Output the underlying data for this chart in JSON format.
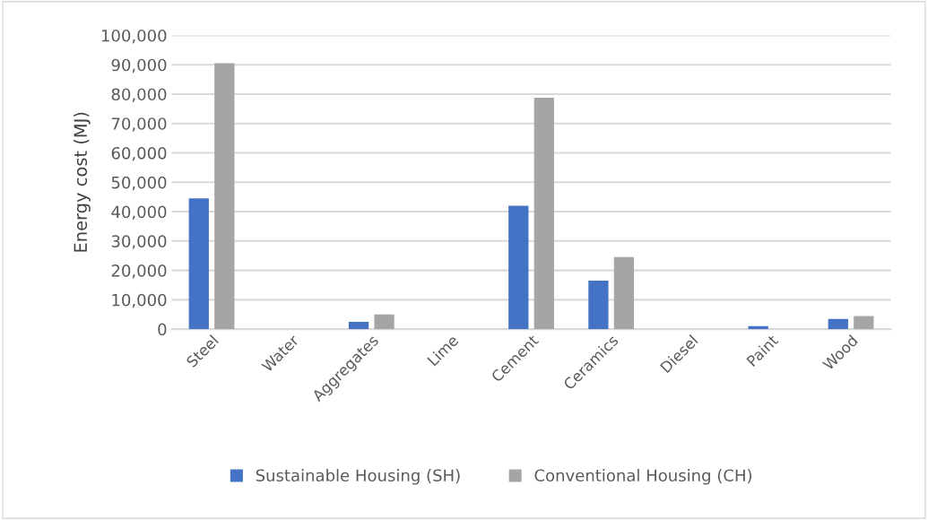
{
  "chart_data": {
    "type": "bar",
    "ylabel": "Energy cost (MJ)",
    "categories": [
      "Steel",
      "Water",
      "Aggregates",
      "Lime",
      "Cement",
      "Ceramics",
      "Diesel",
      "Paint",
      "Wood"
    ],
    "series": [
      {
        "name": "Sustainable Housing (SH)",
        "color": "#4472c4",
        "values": [
          44500,
          null,
          2500,
          null,
          42000,
          16500,
          null,
          1000,
          3500
        ]
      },
      {
        "name": "Conventional Housing (CH)",
        "color": "#a5a5a5",
        "values": [
          90500,
          null,
          5000,
          null,
          78800,
          24500,
          null,
          null,
          4500
        ]
      }
    ],
    "ylim": [
      0,
      100000
    ],
    "yticks": [
      {
        "value": 0,
        "label": "0"
      },
      {
        "value": 10000,
        "label": "10,000"
      },
      {
        "value": 20000,
        "label": "20,000"
      },
      {
        "value": 30000,
        "label": "30,000"
      },
      {
        "value": 40000,
        "label": "40,000"
      },
      {
        "value": 50000,
        "label": "50,000"
      },
      {
        "value": 60000,
        "label": "60,000"
      },
      {
        "value": 70000,
        "label": "70,000"
      },
      {
        "value": 80000,
        "label": "80,000"
      },
      {
        "value": 90000,
        "label": "90,000"
      },
      {
        "value": 100000,
        "label": "100,000"
      }
    ],
    "grid": "y",
    "legend": "bottom"
  }
}
